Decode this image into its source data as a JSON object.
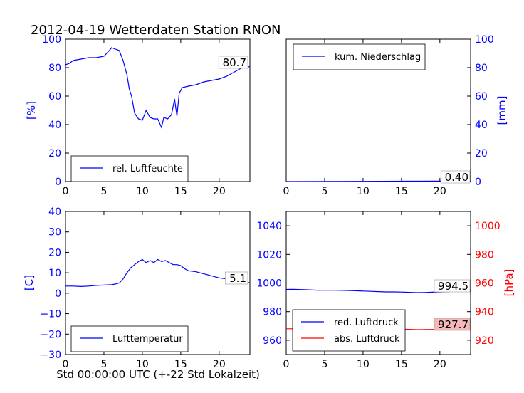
{
  "figure": {
    "title": "2012-04-19 Wetterdaten Station RNON",
    "xlabel": "Std 00:00:00 UTC (+-22 Std Lokalzeit)"
  },
  "chart_data": [
    {
      "type": "line",
      "position": "top-left",
      "ylabel": "[%]",
      "xlim": [
        0,
        24
      ],
      "ylim": [
        0,
        100
      ],
      "xticks": [
        "0",
        "5",
        "10",
        "15",
        "20"
      ],
      "yticks": [
        "0",
        "20",
        "40",
        "60",
        "80",
        "100"
      ],
      "legend": "lower left",
      "series": [
        {
          "name": "rel. Luftfeuchte",
          "color": "#0000ff",
          "x": [
            0,
            0.5,
            1,
            2,
            3,
            4,
            5,
            5.7,
            6,
            6.5,
            7,
            7.5,
            8,
            8.3,
            8.6,
            9,
            9.5,
            10,
            10.5,
            11,
            11.5,
            12,
            12.5,
            12.8,
            13.3,
            13.8,
            14.2,
            14.5,
            14.8,
            15.2,
            16,
            17,
            18,
            19,
            20,
            21,
            22,
            23,
            24
          ],
          "y": [
            82,
            83,
            85,
            86,
            87,
            87,
            88,
            92,
            94,
            93,
            92,
            85,
            75,
            65,
            60,
            48,
            44,
            43,
            50,
            45,
            44,
            44,
            38,
            45,
            44,
            47,
            58,
            46,
            62,
            66,
            67,
            68,
            70,
            71,
            72,
            74,
            77,
            80,
            80.7
          ]
        }
      ],
      "annotation": "80.7"
    },
    {
      "type": "line",
      "position": "top-right",
      "ylabel": "[mm]",
      "xlim": [
        0,
        24
      ],
      "ylim": [
        0,
        100
      ],
      "xticks": [
        "0",
        "5",
        "10",
        "15",
        "20"
      ],
      "yticks": [
        "0",
        "20",
        "40",
        "60",
        "80",
        "100"
      ],
      "legend": "upper left",
      "series": [
        {
          "name": "kum. Niederschlag",
          "color": "#0000ff",
          "x": [
            0,
            5,
            10,
            15,
            20,
            24
          ],
          "y": [
            0,
            0.05,
            0.15,
            0.25,
            0.35,
            0.4
          ]
        }
      ],
      "annotation": "0.40"
    },
    {
      "type": "line",
      "position": "bottom-left",
      "ylabel": "[C]",
      "xlim": [
        0,
        24
      ],
      "ylim": [
        -30,
        40
      ],
      "xticks": [
        "0",
        "5",
        "10",
        "15",
        "20"
      ],
      "yticks": [
        "−30",
        "−20",
        "−10",
        "0",
        "10",
        "20",
        "30",
        "40"
      ],
      "legend": "lower left",
      "series": [
        {
          "name": "Lufttemperatur",
          "color": "#0000ff",
          "x": [
            0,
            1,
            2,
            3,
            4,
            5,
            6,
            6.5,
            7,
            7.5,
            8,
            8.5,
            9,
            9.5,
            10,
            10.5,
            11,
            11.5,
            12,
            12.5,
            13,
            13.5,
            14,
            14.5,
            15,
            15.5,
            16,
            17,
            18,
            19,
            20,
            21,
            22,
            23,
            24
          ],
          "y": [
            3.5,
            3.5,
            3.3,
            3.5,
            3.8,
            4,
            4.2,
            4.5,
            5,
            7,
            10,
            12.5,
            14,
            15.5,
            16.5,
            15,
            16,
            15,
            16.5,
            15.5,
            16,
            15,
            14,
            14,
            13.5,
            12,
            11,
            10.5,
            9.5,
            8.5,
            7.5,
            7,
            6.5,
            5.8,
            5.1
          ]
        }
      ],
      "annotation": "5.1"
    },
    {
      "type": "line",
      "position": "bottom-right",
      "xlim": [
        0,
        24
      ],
      "ylim_left": [
        950,
        1050
      ],
      "ylim_right": [
        910,
        1010
      ],
      "xticks": [
        "0",
        "5",
        "10",
        "15",
        "20"
      ],
      "yticks_left": [
        "960",
        "980",
        "1000",
        "1020",
        "1040"
      ],
      "yticks_right": [
        "920",
        "940",
        "960",
        "980",
        "1000"
      ],
      "ylabel_right": "[hPa]",
      "legend": "lower left",
      "series": [
        {
          "name": "red. Luftdruck",
          "color": "#0000ff",
          "axis": "left",
          "x": [
            0,
            1,
            2,
            3,
            4,
            5,
            6,
            7,
            8,
            9,
            10,
            11,
            12,
            13,
            14,
            15,
            16,
            17,
            18,
            19,
            20,
            21,
            22,
            23,
            24
          ],
          "y": [
            995.5,
            995.6,
            995.4,
            995.2,
            995.0,
            995.0,
            995.0,
            994.9,
            994.8,
            994.6,
            994.4,
            994.2,
            994.0,
            993.8,
            993.8,
            993.7,
            993.5,
            993.3,
            993.4,
            993.6,
            993.8,
            994.0,
            994.2,
            994.4,
            994.5
          ]
        },
        {
          "name": "abs. Luftdruck",
          "color": "#ff0000",
          "axis": "right",
          "x": [
            0,
            2,
            4,
            6,
            8,
            9,
            10,
            11,
            12,
            14,
            16,
            17,
            18,
            20,
            22,
            24
          ],
          "y": [
            928,
            928,
            928,
            928.2,
            928.8,
            929.5,
            929.3,
            928.8,
            928.5,
            928.0,
            927.6,
            927.4,
            927.5,
            927.6,
            927.7,
            927.7
          ]
        }
      ],
      "annotations": [
        "994.5",
        "927.7"
      ]
    }
  ]
}
